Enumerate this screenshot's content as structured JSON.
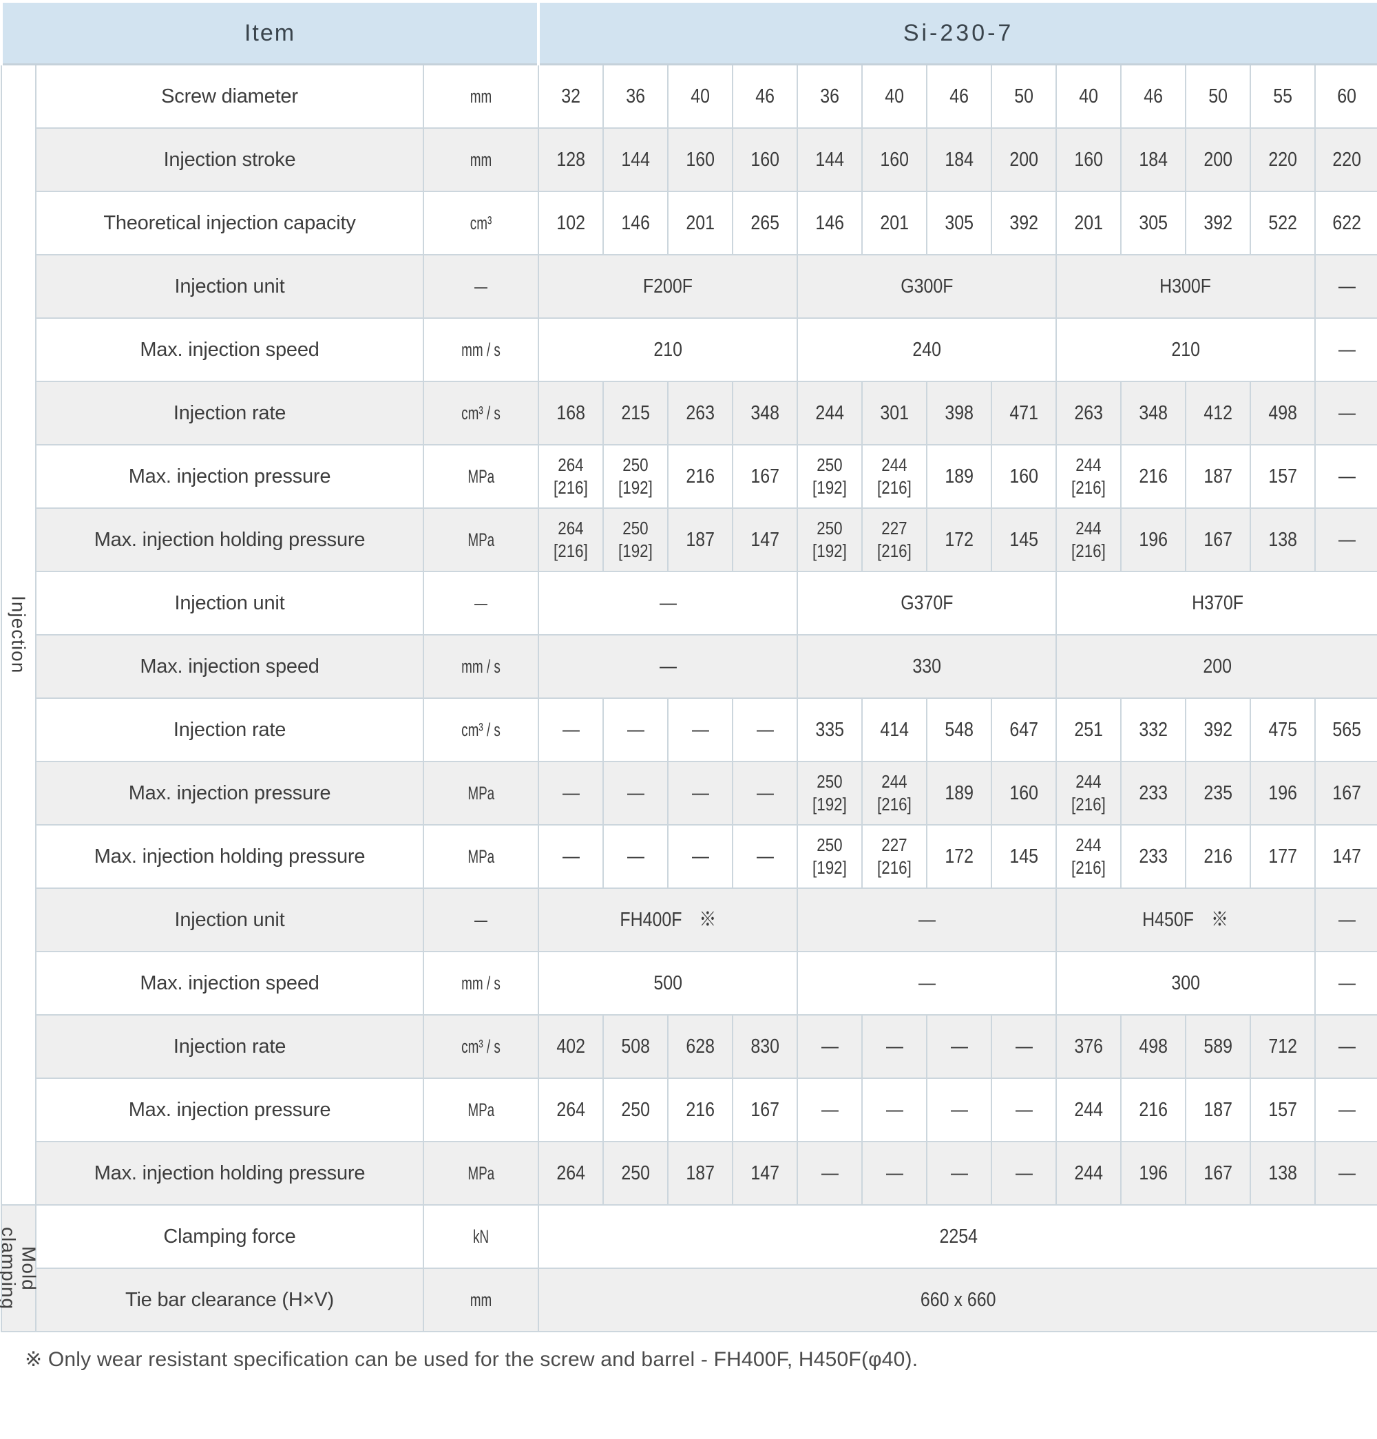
{
  "header": {
    "item_label": "Item",
    "model_label": "Si-230-7"
  },
  "groups": [
    {
      "label": "Injection",
      "rowspan": 18,
      "start": 0,
      "bg": "#ffffff"
    },
    {
      "label": "Mold clamping",
      "rowspan": 2,
      "start": 18,
      "bg": "#efefef"
    }
  ],
  "rows": [
    {
      "label": "Screw diameter",
      "unit": "mm",
      "cells": [
        {
          "v": "32"
        },
        {
          "v": "36"
        },
        {
          "v": "40"
        },
        {
          "v": "46"
        },
        {
          "v": "36"
        },
        {
          "v": "40"
        },
        {
          "v": "46"
        },
        {
          "v": "50"
        },
        {
          "v": "40"
        },
        {
          "v": "46"
        },
        {
          "v": "50"
        },
        {
          "v": "55"
        },
        {
          "v": "60"
        }
      ]
    },
    {
      "label": "Injection stroke",
      "unit": "mm",
      "cells": [
        {
          "v": "128"
        },
        {
          "v": "144"
        },
        {
          "v": "160"
        },
        {
          "v": "160"
        },
        {
          "v": "144"
        },
        {
          "v": "160"
        },
        {
          "v": "184"
        },
        {
          "v": "200"
        },
        {
          "v": "160"
        },
        {
          "v": "184"
        },
        {
          "v": "200"
        },
        {
          "v": "220"
        },
        {
          "v": "220"
        }
      ]
    },
    {
      "label": "Theoretical injection capacity",
      "unit": "cm³",
      "cells": [
        {
          "v": "102"
        },
        {
          "v": "146"
        },
        {
          "v": "201"
        },
        {
          "v": "265"
        },
        {
          "v": "146"
        },
        {
          "v": "201"
        },
        {
          "v": "305"
        },
        {
          "v": "392"
        },
        {
          "v": "201"
        },
        {
          "v": "305"
        },
        {
          "v": "392"
        },
        {
          "v": "522"
        },
        {
          "v": "622"
        }
      ]
    },
    {
      "label": "Injection unit",
      "unit": "—",
      "cells": [
        {
          "v": "F200F",
          "span": 4
        },
        {
          "v": "G300F",
          "span": 4
        },
        {
          "v": "H300F",
          "span": 4
        },
        {
          "v": "—"
        }
      ]
    },
    {
      "label": "Max. injection speed",
      "unit": "mm / s",
      "cells": [
        {
          "v": "210",
          "span": 4
        },
        {
          "v": "240",
          "span": 4
        },
        {
          "v": "210",
          "span": 4
        },
        {
          "v": "—"
        }
      ]
    },
    {
      "label": "Injection rate",
      "unit": "cm³ / s",
      "cells": [
        {
          "v": "168"
        },
        {
          "v": "215"
        },
        {
          "v": "263"
        },
        {
          "v": "348"
        },
        {
          "v": "244"
        },
        {
          "v": "301"
        },
        {
          "v": "398"
        },
        {
          "v": "471"
        },
        {
          "v": "263"
        },
        {
          "v": "348"
        },
        {
          "v": "412"
        },
        {
          "v": "498"
        },
        {
          "v": "—"
        }
      ]
    },
    {
      "label": "Max. injection pressure",
      "unit": "MPa",
      "cells": [
        {
          "v": "264\n[216]"
        },
        {
          "v": "250\n[192]"
        },
        {
          "v": "216"
        },
        {
          "v": "167"
        },
        {
          "v": "250\n[192]"
        },
        {
          "v": "244\n[216]"
        },
        {
          "v": "189"
        },
        {
          "v": "160"
        },
        {
          "v": "244\n[216]"
        },
        {
          "v": "216"
        },
        {
          "v": "187"
        },
        {
          "v": "157"
        },
        {
          "v": "—"
        }
      ]
    },
    {
      "label": "Max. injection holding pressure",
      "unit": "MPa",
      "cells": [
        {
          "v": "264\n[216]"
        },
        {
          "v": "250\n[192]"
        },
        {
          "v": "187"
        },
        {
          "v": "147"
        },
        {
          "v": "250\n[192]"
        },
        {
          "v": "227\n[216]"
        },
        {
          "v": "172"
        },
        {
          "v": "145"
        },
        {
          "v": "244\n[216]"
        },
        {
          "v": "196"
        },
        {
          "v": "167"
        },
        {
          "v": "138"
        },
        {
          "v": "—"
        }
      ]
    },
    {
      "label": "Injection unit",
      "unit": "—",
      "cells": [
        {
          "v": "—",
          "span": 4
        },
        {
          "v": "G370F",
          "span": 4
        },
        {
          "v": "H370F",
          "span": 5
        }
      ]
    },
    {
      "label": "Max. injection speed",
      "unit": "mm / s",
      "cells": [
        {
          "v": "—",
          "span": 4
        },
        {
          "v": "330",
          "span": 4
        },
        {
          "v": "200",
          "span": 5
        }
      ]
    },
    {
      "label": "Injection rate",
      "unit": "cm³ / s",
      "cells": [
        {
          "v": "—"
        },
        {
          "v": "—"
        },
        {
          "v": "—"
        },
        {
          "v": "—"
        },
        {
          "v": "335"
        },
        {
          "v": "414"
        },
        {
          "v": "548"
        },
        {
          "v": "647"
        },
        {
          "v": "251"
        },
        {
          "v": "332"
        },
        {
          "v": "392"
        },
        {
          "v": "475"
        },
        {
          "v": "565"
        }
      ]
    },
    {
      "label": "Max. injection pressure",
      "unit": "MPa",
      "cells": [
        {
          "v": "—"
        },
        {
          "v": "—"
        },
        {
          "v": "—"
        },
        {
          "v": "—"
        },
        {
          "v": "250\n[192]"
        },
        {
          "v": "244\n[216]"
        },
        {
          "v": "189"
        },
        {
          "v": "160"
        },
        {
          "v": "244\n[216]"
        },
        {
          "v": "233"
        },
        {
          "v": "235"
        },
        {
          "v": "196"
        },
        {
          "v": "167"
        }
      ]
    },
    {
      "label": "Max. injection holding pressure",
      "unit": "MPa",
      "cells": [
        {
          "v": "—"
        },
        {
          "v": "—"
        },
        {
          "v": "—"
        },
        {
          "v": "—"
        },
        {
          "v": "250\n[192]"
        },
        {
          "v": "227\n[216]"
        },
        {
          "v": "172"
        },
        {
          "v": "145"
        },
        {
          "v": "244\n[216]"
        },
        {
          "v": "233"
        },
        {
          "v": "216"
        },
        {
          "v": "177"
        },
        {
          "v": "147"
        }
      ]
    },
    {
      "label": "Injection unit",
      "unit": "—",
      "cells": [
        {
          "v": "FH400F　※",
          "span": 4
        },
        {
          "v": "—",
          "span": 4
        },
        {
          "v": "H450F　※",
          "span": 4
        },
        {
          "v": "—"
        }
      ]
    },
    {
      "label": "Max. injection speed",
      "unit": "mm / s",
      "cells": [
        {
          "v": "500",
          "span": 4
        },
        {
          "v": "—",
          "span": 4
        },
        {
          "v": "300",
          "span": 4
        },
        {
          "v": "—"
        }
      ]
    },
    {
      "label": "Injection rate",
      "unit": "cm³ / s",
      "cells": [
        {
          "v": "402"
        },
        {
          "v": "508"
        },
        {
          "v": "628"
        },
        {
          "v": "830"
        },
        {
          "v": "—"
        },
        {
          "v": "—"
        },
        {
          "v": "—"
        },
        {
          "v": "—"
        },
        {
          "v": "376"
        },
        {
          "v": "498"
        },
        {
          "v": "589"
        },
        {
          "v": "712"
        },
        {
          "v": "—"
        }
      ]
    },
    {
      "label": "Max. injection pressure",
      "unit": "MPa",
      "cells": [
        {
          "v": "264"
        },
        {
          "v": "250"
        },
        {
          "v": "216"
        },
        {
          "v": "167"
        },
        {
          "v": "—"
        },
        {
          "v": "—"
        },
        {
          "v": "—"
        },
        {
          "v": "—"
        },
        {
          "v": "244"
        },
        {
          "v": "216"
        },
        {
          "v": "187"
        },
        {
          "v": "157"
        },
        {
          "v": "—"
        }
      ]
    },
    {
      "label": "Max. injection holding pressure",
      "unit": "MPa",
      "cells": [
        {
          "v": "264"
        },
        {
          "v": "250"
        },
        {
          "v": "187"
        },
        {
          "v": "147"
        },
        {
          "v": "—"
        },
        {
          "v": "—"
        },
        {
          "v": "—"
        },
        {
          "v": "—"
        },
        {
          "v": "244"
        },
        {
          "v": "196"
        },
        {
          "v": "167"
        },
        {
          "v": "138"
        },
        {
          "v": "—"
        }
      ]
    },
    {
      "label": "Clamping force",
      "unit": "kN",
      "cells": [
        {
          "v": "2254",
          "span": 13
        }
      ]
    },
    {
      "label": "Tie bar clearance (H×V)",
      "unit": "mm",
      "cells": [
        {
          "v": "660 x 660",
          "span": 13
        }
      ]
    }
  ],
  "footnote": "※ Only wear resistant specification can be used for the screw and barrel - FH400F, H450F(φ40).",
  "colors": {
    "header_bg": "#d2e3f0",
    "row_alt_bg": "#efefef",
    "border": "#ccd6dd"
  }
}
